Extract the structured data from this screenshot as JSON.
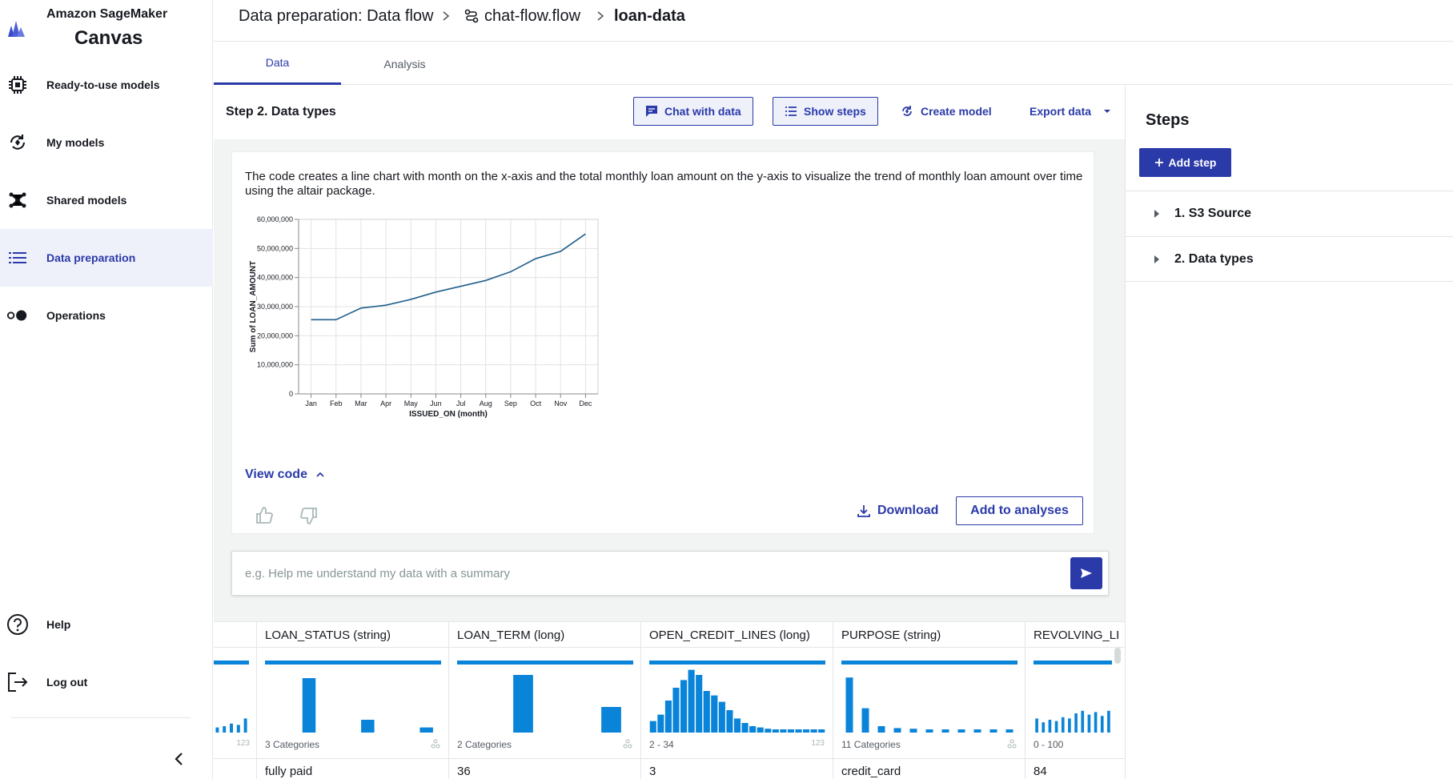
{
  "sidebar": {
    "brand_line1": "Amazon SageMaker",
    "brand_line2": "Canvas",
    "items": [
      {
        "label": "Ready-to-use models",
        "icon": "chip-icon"
      },
      {
        "label": "My models",
        "icon": "models-cycle-icon"
      },
      {
        "label": "Shared models",
        "icon": "network-icon"
      },
      {
        "label": "Data preparation",
        "icon": "list-icon",
        "active": true
      },
      {
        "label": "Operations",
        "icon": "toggle-icon"
      }
    ],
    "bottom_items": [
      {
        "label": "Help",
        "icon": "help-icon"
      },
      {
        "label": "Log out",
        "icon": "logout-icon"
      }
    ]
  },
  "header": {
    "crumb1": "Data preparation: Data flow",
    "crumb2": "chat-flow.flow",
    "crumb3": "loan-data"
  },
  "tabs": [
    {
      "label": "Data",
      "active": true
    },
    {
      "label": "Analysis",
      "active": false
    }
  ],
  "toolbar": {
    "step_title": "Step 2. Data types",
    "chat_label": "Chat with data",
    "show_steps_label": "Show steps",
    "create_model_label": "Create model",
    "export_label": "Export data"
  },
  "chat": {
    "description": "The code creates a line chart with month on the x-axis and the total monthly loan amount on the y-axis to visualize the trend of monthly loan amount over time using the altair package.",
    "view_code_label": "View code",
    "download_label": "Download",
    "add_to_analyses_label": "Add to analyses",
    "prompt_placeholder": "e.g. Help me understand my data with a summary"
  },
  "chart_data": {
    "type": "line",
    "x": [
      "Jan",
      "Feb",
      "Mar",
      "Apr",
      "May",
      "Jun",
      "Jul",
      "Aug",
      "Sep",
      "Oct",
      "Nov",
      "Dec"
    ],
    "values": [
      25500000,
      25500000,
      29500000,
      30500000,
      32500000,
      35000000,
      37000000,
      39000000,
      42000000,
      46500000,
      49000000,
      55000000
    ],
    "xlabel": "ISSUED_ON (month)",
    "ylabel": "Sum of LOAN_AMOUNT",
    "ylim": [
      0,
      60000000
    ],
    "yticks": [
      "0",
      "10,000,000",
      "20,000,000",
      "30,000,000",
      "40,000,000",
      "50,000,000",
      "60,000,000"
    ],
    "grid": true,
    "line_color": "#1f5f8b"
  },
  "grid": {
    "columns": [
      {
        "name": "",
        "sub": "",
        "value": "",
        "hist": [
          0.08,
          0.1,
          0.14,
          0.12,
          0.22
        ]
      },
      {
        "name": "LOAN_STATUS (string)",
        "sub": "3 Categories",
        "value": "fully paid",
        "hist": [
          0,
          0.85,
          0,
          0.2,
          0,
          0.08
        ]
      },
      {
        "name": "LOAN_TERM (long)",
        "sub": "2 Categories",
        "value": "36",
        "hist": [
          0,
          0.9,
          0,
          0.4
        ]
      },
      {
        "name": "OPEN_CREDIT_LINES (long)",
        "sub": "2 - 34",
        "value": "3",
        "hist": [
          0.18,
          0.28,
          0.5,
          0.7,
          0.82,
          0.98,
          0.9,
          0.65,
          0.58,
          0.48,
          0.35,
          0.22,
          0.15,
          0.1,
          0.08,
          0.06,
          0.05,
          0.05,
          0.05,
          0.05,
          0.05,
          0.05,
          0.05
        ]
      },
      {
        "name": "PURPOSE (string)",
        "sub": "11 Categories",
        "value": "credit_card",
        "hist": [
          0.86,
          0.38,
          0.1,
          0.07,
          0.06,
          0.05,
          0.05,
          0.05,
          0.05,
          0.05,
          0.05
        ]
      },
      {
        "name": "REVOLVING_LI",
        "sub": "0 - 100",
        "value": "84",
        "hist": [
          0.22,
          0.16,
          0.2,
          0.18,
          0.24,
          0.22,
          0.3,
          0.34,
          0.28,
          0.32,
          0.26,
          0.34
        ]
      }
    ],
    "bar_color": "#0a84d9"
  },
  "steps": {
    "title": "Steps",
    "add_label": "Add step",
    "items": [
      "1. S3 Source",
      "2. Data types"
    ]
  },
  "colors": {
    "accent": "#2b3aa9",
    "active_bg": "#eef0fa"
  }
}
